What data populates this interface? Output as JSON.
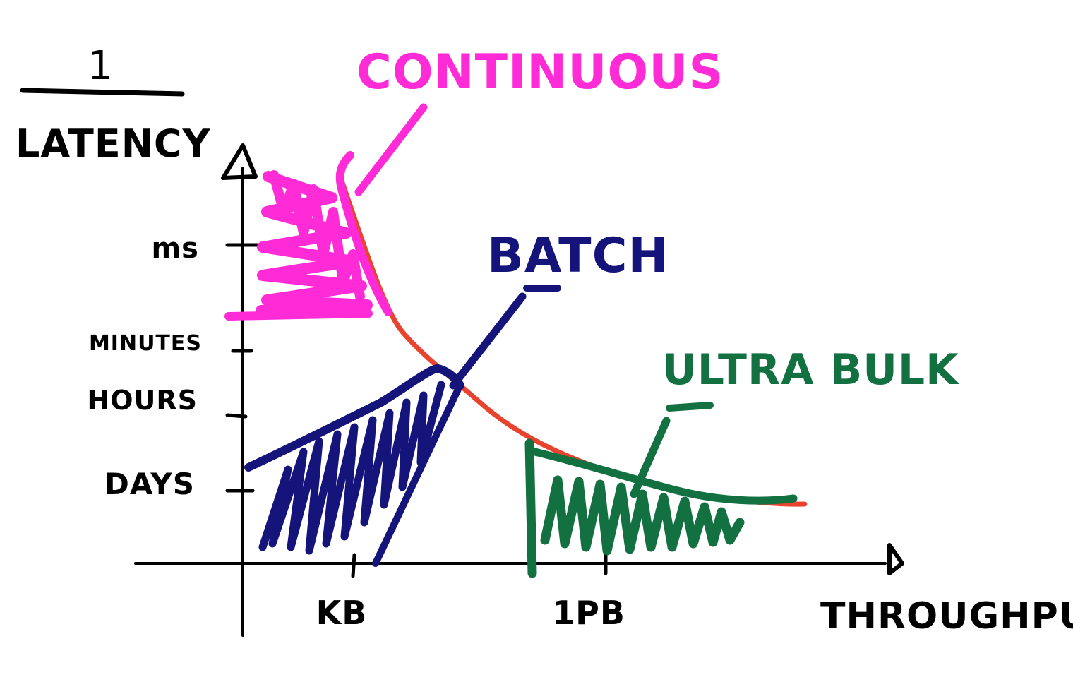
{
  "y_axis": {
    "label_numerator": "1",
    "label_denominator": "LATENCY",
    "ticks": [
      "ms",
      "MINUTES",
      "HOURS",
      "DAYS"
    ]
  },
  "x_axis": {
    "label": "THROUGHPUT",
    "ticks": [
      "KB",
      "1PB"
    ]
  },
  "regions": {
    "continuous": "CONTINUOUS",
    "batch": "BATCH",
    "ultra_bulk": "ULTRA BULK"
  },
  "colors": {
    "continuous": "#ff2bd6",
    "batch": "#14147a",
    "ultra_bulk": "#137040",
    "frontier": "#e8432e",
    "axis": "#000000"
  }
}
